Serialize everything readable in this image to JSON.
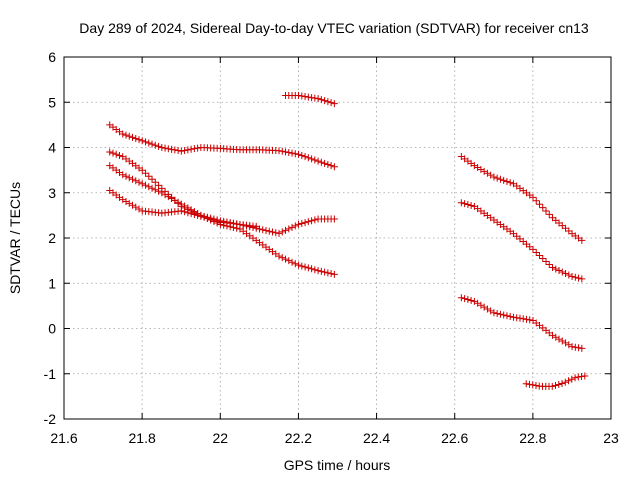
{
  "chart_data": {
    "type": "scatter",
    "title": "Day 289 of 2024, Sidereal Day-to-day VTEC variation (SDTVAR) for receiver cn13",
    "xlabel": "GPS time / hours",
    "ylabel": "SDTVAR / TECUs",
    "xlim": [
      21.6,
      23.0
    ],
    "ylim": [
      -2,
      6
    ],
    "xticks": [
      21.6,
      21.8,
      22.0,
      22.2,
      22.4,
      22.6,
      22.8,
      23.0
    ],
    "xtick_labels": [
      "21.6",
      "21.8",
      "22",
      "22.2",
      "22.4",
      "22.6",
      "22.8",
      "23"
    ],
    "yticks": [
      -2,
      -1,
      0,
      1,
      2,
      3,
      4,
      5,
      6
    ],
    "ytick_labels": [
      "-2",
      "-1",
      "0",
      "1",
      "2",
      "3",
      "4",
      "5",
      "6"
    ],
    "grid": true,
    "marker": "+",
    "color": "#cc0000",
    "series": [
      {
        "name": "s1",
        "x": [
          21.717,
          21.75,
          21.8,
          21.85,
          21.9,
          21.95,
          22.0,
          22.05,
          22.1,
          22.15,
          22.2,
          22.25,
          22.3
        ],
        "y": [
          4.5,
          4.3,
          4.15,
          4.0,
          3.92,
          4.0,
          3.98,
          3.95,
          3.95,
          3.93,
          3.85,
          3.7,
          3.55
        ]
      },
      {
        "name": "s2",
        "x": [
          21.717,
          21.75,
          21.8,
          21.85,
          21.9,
          21.95,
          22.0,
          22.05,
          22.1,
          22.15,
          22.2,
          22.25,
          22.3
        ],
        "y": [
          3.9,
          3.8,
          3.5,
          3.1,
          2.7,
          2.5,
          2.38,
          2.3,
          2.2,
          2.1,
          2.3,
          2.42,
          2.42
        ]
      },
      {
        "name": "s3",
        "x": [
          21.717,
          21.75,
          21.8,
          21.85,
          21.9,
          21.95,
          22.0,
          22.05,
          22.1,
          22.15,
          22.2,
          22.25,
          22.3
        ],
        "y": [
          3.6,
          3.4,
          3.2,
          3.0,
          2.75,
          2.5,
          2.3,
          2.2,
          1.9,
          1.6,
          1.4,
          1.28,
          1.18
        ]
      },
      {
        "name": "s4",
        "x": [
          21.717,
          21.75,
          21.8,
          21.85,
          21.9,
          21.95,
          22.0,
          22.05,
          22.1
        ],
        "y": [
          3.05,
          2.85,
          2.6,
          2.55,
          2.6,
          2.48,
          2.35,
          2.3,
          2.25
        ]
      },
      {
        "name": "s5",
        "x": [
          22.167,
          22.2,
          22.25,
          22.3
        ],
        "y": [
          5.15,
          5.15,
          5.08,
          4.95
        ]
      },
      {
        "name": "s6",
        "x": [
          22.617,
          22.65,
          22.7,
          22.75,
          22.8,
          22.85,
          22.9,
          22.933
        ],
        "y": [
          3.8,
          3.6,
          3.35,
          3.2,
          2.9,
          2.45,
          2.1,
          1.9
        ]
      },
      {
        "name": "s7",
        "x": [
          22.617,
          22.65,
          22.7,
          22.75,
          22.8,
          22.85,
          22.9,
          22.933
        ],
        "y": [
          2.78,
          2.7,
          2.4,
          2.1,
          1.75,
          1.35,
          1.15,
          1.08
        ]
      },
      {
        "name": "s8",
        "x": [
          22.617,
          22.65,
          22.7,
          22.75,
          22.8,
          22.85,
          22.9,
          22.933
        ],
        "y": [
          0.68,
          0.6,
          0.35,
          0.25,
          0.18,
          -0.15,
          -0.4,
          -0.45
        ]
      },
      {
        "name": "s9",
        "x": [
          22.783,
          22.82,
          22.85,
          22.88,
          22.91,
          22.933
        ],
        "y": [
          -1.22,
          -1.28,
          -1.28,
          -1.2,
          -1.08,
          -1.05
        ]
      }
    ]
  }
}
